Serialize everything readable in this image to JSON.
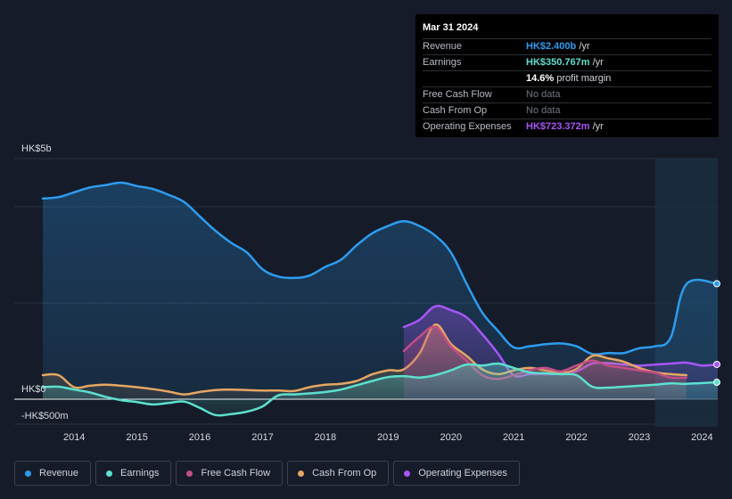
{
  "tooltip": {
    "date": "Mar 31 2024",
    "rows": [
      {
        "label": "Revenue",
        "value": "HK$2.400b",
        "unit": " /yr",
        "color": "#2d9cef"
      },
      {
        "label": "Earnings",
        "value": "HK$350.767m",
        "unit": " /yr",
        "color": "#5ce0cf"
      },
      {
        "label": "",
        "value": "14.6%",
        "unit": " profit margin",
        "color": "#ffffff"
      },
      {
        "label": "Free Cash Flow",
        "value": "No data",
        "unit": "",
        "color": "muted"
      },
      {
        "label": "Cash From Op",
        "value": "No data",
        "unit": "",
        "color": "muted"
      },
      {
        "label": "Operating Expenses",
        "value": "HK$723.372m",
        "unit": " /yr",
        "color": "#a855f7"
      }
    ]
  },
  "legend": [
    {
      "label": "Revenue",
      "color": "#2d9cef"
    },
    {
      "label": "Earnings",
      "color": "#5ce0cf"
    },
    {
      "label": "Free Cash Flow",
      "color": "#c44d86"
    },
    {
      "label": "Cash From Op",
      "color": "#e5a663"
    },
    {
      "label": "Operating Expenses",
      "color": "#a855f7"
    }
  ],
  "chart_data": {
    "type": "line",
    "title": "",
    "y_unit": "HK$m",
    "ylim": [
      -500,
      5000
    ],
    "y_tick_labels": [
      {
        "value": 5000,
        "label": "HK$5b"
      },
      {
        "value": 0,
        "label": "HK$0"
      },
      {
        "value": -500,
        "label": "-HK$500m"
      }
    ],
    "xlim": [
      2013.5,
      2024.25
    ],
    "x_ticks": [
      2014,
      2015,
      2016,
      2017,
      2018,
      2019,
      2020,
      2021,
      2022,
      2023,
      2024
    ],
    "forecast_start": 2023.25,
    "series": [
      {
        "name": "Revenue",
        "color": "#2d9cef",
        "fill": true,
        "points": [
          [
            2013.5,
            4170
          ],
          [
            2013.75,
            4200
          ],
          [
            2014.0,
            4300
          ],
          [
            2014.25,
            4400
          ],
          [
            2014.5,
            4450
          ],
          [
            2014.75,
            4500
          ],
          [
            2015.0,
            4430
          ],
          [
            2015.25,
            4370
          ],
          [
            2015.5,
            4250
          ],
          [
            2015.75,
            4100
          ],
          [
            2016.0,
            3800
          ],
          [
            2016.25,
            3500
          ],
          [
            2016.5,
            3250
          ],
          [
            2016.75,
            3050
          ],
          [
            2017.0,
            2700
          ],
          [
            2017.25,
            2550
          ],
          [
            2017.5,
            2520
          ],
          [
            2017.75,
            2570
          ],
          [
            2018.0,
            2750
          ],
          [
            2018.25,
            2900
          ],
          [
            2018.5,
            3200
          ],
          [
            2018.75,
            3450
          ],
          [
            2019.0,
            3600
          ],
          [
            2019.25,
            3700
          ],
          [
            2019.5,
            3600
          ],
          [
            2019.75,
            3400
          ],
          [
            2020.0,
            3050
          ],
          [
            2020.25,
            2400
          ],
          [
            2020.5,
            1800
          ],
          [
            2020.75,
            1420
          ],
          [
            2021.0,
            1080
          ],
          [
            2021.25,
            1100
          ],
          [
            2021.5,
            1140
          ],
          [
            2021.75,
            1160
          ],
          [
            2022.0,
            1100
          ],
          [
            2022.25,
            940
          ],
          [
            2022.5,
            960
          ],
          [
            2022.75,
            960
          ],
          [
            2023.0,
            1060
          ],
          [
            2023.25,
            1100
          ],
          [
            2023.5,
            1280
          ],
          [
            2023.75,
            2390
          ],
          [
            2024.25,
            2400
          ]
        ]
      },
      {
        "name": "Earnings",
        "color": "#5ce0cf",
        "fill": true,
        "points": [
          [
            2013.5,
            250
          ],
          [
            2013.75,
            260
          ],
          [
            2014.0,
            200
          ],
          [
            2014.25,
            140
          ],
          [
            2014.5,
            50
          ],
          [
            2014.75,
            -20
          ],
          [
            2015.0,
            -60
          ],
          [
            2015.25,
            -110
          ],
          [
            2015.5,
            -80
          ],
          [
            2015.75,
            -50
          ],
          [
            2016.0,
            -180
          ],
          [
            2016.25,
            -330
          ],
          [
            2016.5,
            -310
          ],
          [
            2016.75,
            -260
          ],
          [
            2017.0,
            -150
          ],
          [
            2017.25,
            80
          ],
          [
            2017.5,
            100
          ],
          [
            2017.75,
            120
          ],
          [
            2018.0,
            150
          ],
          [
            2018.25,
            200
          ],
          [
            2018.5,
            290
          ],
          [
            2018.75,
            380
          ],
          [
            2019.0,
            460
          ],
          [
            2019.25,
            480
          ],
          [
            2019.5,
            450
          ],
          [
            2019.75,
            500
          ],
          [
            2020.0,
            600
          ],
          [
            2020.25,
            720
          ],
          [
            2020.5,
            700
          ],
          [
            2020.75,
            740
          ],
          [
            2021.0,
            650
          ],
          [
            2021.25,
            560
          ],
          [
            2021.5,
            540
          ],
          [
            2021.75,
            520
          ],
          [
            2022.0,
            500
          ],
          [
            2022.25,
            260
          ],
          [
            2022.5,
            240
          ],
          [
            2022.75,
            260
          ],
          [
            2023.0,
            280
          ],
          [
            2023.25,
            300
          ],
          [
            2023.5,
            330
          ],
          [
            2023.75,
            320
          ],
          [
            2024.25,
            351
          ]
        ]
      },
      {
        "name": "Free Cash Flow",
        "color": "#c44d86",
        "fill": true,
        "points": [
          [
            2019.25,
            1000
          ],
          [
            2019.5,
            1300
          ],
          [
            2019.75,
            1500
          ],
          [
            2020.0,
            1100
          ],
          [
            2020.25,
            800
          ],
          [
            2020.5,
            500
          ],
          [
            2020.75,
            420
          ],
          [
            2021.0,
            500
          ],
          [
            2021.25,
            600
          ],
          [
            2021.5,
            650
          ],
          [
            2021.75,
            580
          ],
          [
            2022.0,
            700
          ],
          [
            2022.25,
            800
          ],
          [
            2022.5,
            700
          ],
          [
            2022.75,
            650
          ],
          [
            2023.0,
            600
          ],
          [
            2023.25,
            550
          ],
          [
            2023.5,
            450
          ],
          [
            2023.75,
            450
          ]
        ]
      },
      {
        "name": "Cash From Op",
        "color": "#e5a663",
        "fill": true,
        "points": [
          [
            2013.5,
            500
          ],
          [
            2013.75,
            500
          ],
          [
            2014.0,
            250
          ],
          [
            2014.25,
            280
          ],
          [
            2014.5,
            300
          ],
          [
            2014.75,
            280
          ],
          [
            2015.0,
            250
          ],
          [
            2015.25,
            210
          ],
          [
            2015.5,
            160
          ],
          [
            2015.75,
            100
          ],
          [
            2016.0,
            150
          ],
          [
            2016.25,
            190
          ],
          [
            2016.5,
            200
          ],
          [
            2016.75,
            190
          ],
          [
            2017.0,
            180
          ],
          [
            2017.25,
            180
          ],
          [
            2017.5,
            170
          ],
          [
            2017.75,
            250
          ],
          [
            2018.0,
            300
          ],
          [
            2018.25,
            320
          ],
          [
            2018.5,
            380
          ],
          [
            2018.75,
            520
          ],
          [
            2019.0,
            600
          ],
          [
            2019.25,
            620
          ],
          [
            2019.5,
            950
          ],
          [
            2019.75,
            1550
          ],
          [
            2020.0,
            1150
          ],
          [
            2020.25,
            900
          ],
          [
            2020.5,
            620
          ],
          [
            2020.75,
            520
          ],
          [
            2021.0,
            600
          ],
          [
            2021.25,
            650
          ],
          [
            2021.5,
            600
          ],
          [
            2021.75,
            550
          ],
          [
            2022.0,
            630
          ],
          [
            2022.25,
            900
          ],
          [
            2022.5,
            850
          ],
          [
            2022.75,
            780
          ],
          [
            2023.0,
            650
          ],
          [
            2023.25,
            560
          ],
          [
            2023.5,
            520
          ],
          [
            2023.75,
            500
          ]
        ]
      },
      {
        "name": "Operating Expenses",
        "color": "#a855f7",
        "fill": true,
        "points": [
          [
            2019.25,
            1500
          ],
          [
            2019.5,
            1650
          ],
          [
            2019.75,
            1930
          ],
          [
            2020.0,
            1850
          ],
          [
            2020.25,
            1700
          ],
          [
            2020.5,
            1350
          ],
          [
            2020.75,
            950
          ],
          [
            2021.0,
            500
          ],
          [
            2021.25,
            520
          ],
          [
            2021.5,
            520
          ],
          [
            2021.75,
            530
          ],
          [
            2022.0,
            580
          ],
          [
            2022.25,
            740
          ],
          [
            2022.5,
            750
          ],
          [
            2022.75,
            720
          ],
          [
            2023.0,
            700
          ],
          [
            2023.25,
            720
          ],
          [
            2023.5,
            740
          ],
          [
            2023.75,
            760
          ],
          [
            2024.0,
            700
          ],
          [
            2024.25,
            723
          ]
        ]
      }
    ]
  }
}
